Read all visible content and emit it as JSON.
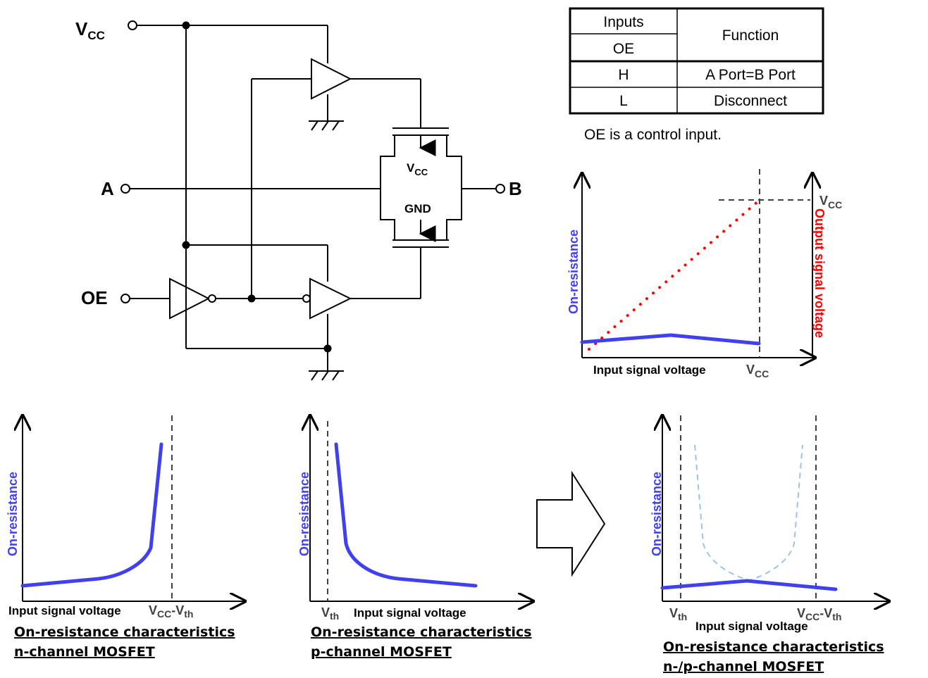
{
  "circuit": {
    "vcc_main": "V",
    "vcc_main_sub": "CC",
    "terminal_a": "A",
    "terminal_b": "B",
    "terminal_oe": "OE",
    "switch_vcc": "V",
    "switch_vcc_sub": "CC",
    "switch_gnd": "GND"
  },
  "truth_table": {
    "header_inputs": "Inputs",
    "header_oe": "OE",
    "header_function": "Function",
    "rows": [
      {
        "oe": "H",
        "function": "A Port=B Port"
      },
      {
        "oe": "L",
        "function": "Disconnect"
      }
    ],
    "note": "OE is a control input."
  },
  "charts": {
    "output_chart": {
      "xlabel": "Input signal voltage",
      "x_vcc": "V",
      "x_vcc_sub": "CC",
      "ylabel_left": "On-resistance",
      "ylabel_right": "Output signal voltage",
      "y_vcc": "V",
      "y_vcc_sub": "CC"
    },
    "nmos": {
      "xlabel": "Input signal voltage",
      "x_mark": "V",
      "x_mark_sub": "CC",
      "x_mark_rest": "-V",
      "x_mark_sub2": "th",
      "ylabel": "On-resistance",
      "caption_line1": "On-resistance characteristics",
      "caption_line2": "n-channel MOSFET"
    },
    "pmos": {
      "xlabel": "Input signal voltage",
      "x_mark": "V",
      "x_mark_sub": "th",
      "ylabel": "On-resistance",
      "caption_line1": "On-resistance characteristics",
      "caption_line2": "p-channel MOSFET"
    },
    "combined": {
      "xlabel": "Input signal voltage",
      "x_mark_left": "V",
      "x_mark_left_sub": "th",
      "x_mark_right": "V",
      "x_mark_right_sub": "CC",
      "x_mark_right_rest": "-V",
      "x_mark_right_sub2": "th",
      "ylabel": "On-resistance",
      "caption_line1": "On-resistance characteristics",
      "caption_line2": "n-/p-channel MOSFET"
    }
  },
  "colors": {
    "curve": "#4040f0",
    "output_dots": "#ff0000",
    "ghost_curve": "#9cc3f0"
  }
}
